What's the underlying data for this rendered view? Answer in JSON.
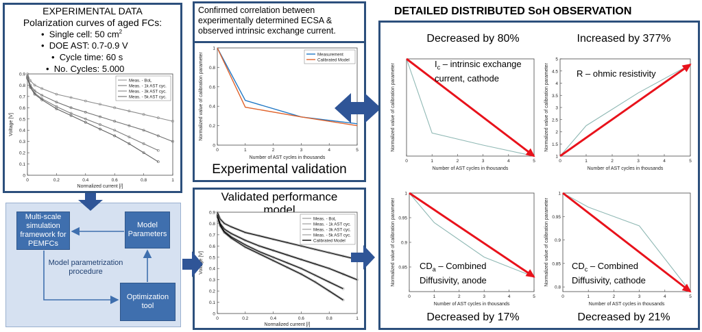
{
  "experimental": {
    "heading": "EXPERIMENTAL DATA",
    "subheading": "Polarization curves of aged FCs:",
    "bullets": [
      "Single cell: 50 cm",
      "DOE AST: 0.7-0.9 V",
      "Cycle time: 60 s",
      "No. Cycles: 5.000"
    ],
    "sup": "2",
    "xlabel": "Normalized current [/]",
    "ylabel": "Voltage [V]",
    "legend": [
      "Meas. - BoL",
      "Meas. - 1k AST cyc.",
      "Meas. - 3k AST cyc.",
      "Meas. - 5k AST cyc."
    ]
  },
  "correlation": {
    "text_lines": [
      "Confirmed correlation between",
      "experimentally determined ECSA &",
      "observed intrinsic exchange current."
    ],
    "xlabel": "Number of AST cycles in thousands",
    "ylabel": "Normalized value of calibration parameter",
    "legend": [
      "Measurement",
      "Calibrated Model"
    ],
    "caption": "Experimental validation"
  },
  "validated": {
    "title_lines": [
      "Validated performance",
      "model"
    ],
    "xlabel": "Normalized current [/]",
    "ylabel": "Voltage [V]",
    "legend": [
      "Meas. - BoL",
      "Meas. - 1k AST cyc.",
      "Meas. - 3k AST cyc.",
      "Meas. - 5k AST cyc.",
      "Calibrated Model"
    ]
  },
  "flow": {
    "framework": [
      "Multi-scale",
      "simulation",
      "framework for",
      "PEMFCs"
    ],
    "parameters": [
      "Model",
      "Parameters"
    ],
    "procedure": [
      "Model parametrization",
      "procedure"
    ],
    "optimization": [
      "Optimization",
      "tool"
    ]
  },
  "distributed": {
    "title": "DETAILED DISTRIBUTED SoH OBSERVATION",
    "xlabel": "Number of AST cycles in thousands",
    "ylabel": "Normalized value of calibration parameter",
    "panels": [
      {
        "headline": "Decreased by 80%",
        "label1": "I",
        "sub": "c",
        "label2": " – intrinsic exchange",
        "label3": "current, cathode"
      },
      {
        "headline": "Increased by 377%",
        "label1": "R – ohmic resistivity",
        "sub": "",
        "label2": "",
        "label3": ""
      },
      {
        "headline": "Decreased by 17%",
        "label1": "CD",
        "sub": "a",
        "label2": " – Combined",
        "label3": "Diffusivity, anode"
      },
      {
        "headline": "Decreased by 21%",
        "label1": "CD",
        "sub": "c",
        "label2": " – Combined",
        "label3": "Diffusivity, cathode"
      }
    ]
  },
  "colors": {
    "frame": "#2c4f7c",
    "arrow": "#2f5597",
    "trend": "#e8121b",
    "measurement": "#1f77c4",
    "model": "#e0622a",
    "thin": "#8fb8b4"
  },
  "chart_data": [
    {
      "type": "line",
      "title": "",
      "xlabel": "Normalized current [/]",
      "ylabel": "Voltage [V]",
      "xlim": [
        0,
        1
      ],
      "ylim": [
        0,
        0.9
      ],
      "xticks": [
        0,
        0.2,
        0.4,
        0.6,
        0.8,
        1
      ],
      "yticks": [
        0,
        0.1,
        0.2,
        0.3,
        0.4,
        0.5,
        0.6,
        0.7,
        0.8,
        0.9
      ],
      "x": [
        0,
        0.02,
        0.05,
        0.1,
        0.2,
        0.3,
        0.4,
        0.5,
        0.6,
        0.7,
        0.8,
        0.9,
        1.0
      ],
      "series": [
        {
          "name": "Meas. - BoL",
          "values": [
            0.9,
            0.84,
            0.8,
            0.77,
            0.72,
            0.69,
            0.66,
            0.63,
            0.6,
            0.57,
            0.54,
            0.51,
            0.48
          ]
        },
        {
          "name": "Meas. - 1k AST cyc.",
          "values": [
            0.88,
            0.8,
            0.75,
            0.71,
            0.65,
            0.6,
            0.56,
            0.52,
            0.48,
            0.44,
            0.4,
            0.35,
            0.3
          ]
        },
        {
          "name": "Meas. - 3k AST cyc.",
          "values": [
            0.87,
            0.79,
            0.73,
            0.68,
            0.61,
            0.55,
            0.5,
            0.45,
            0.4,
            0.34,
            0.28,
            0.22,
            null
          ]
        },
        {
          "name": "Meas. - 5k AST cyc.",
          "values": [
            0.86,
            0.78,
            0.72,
            0.67,
            0.59,
            0.53,
            0.47,
            0.41,
            0.35,
            0.28,
            0.2,
            0.12,
            null
          ]
        }
      ]
    },
    {
      "type": "line",
      "title": "",
      "xlabel": "Number of AST cycles in thousands",
      "ylabel": "Normalized value of calibration parameter",
      "xlim": [
        0,
        5
      ],
      "ylim": [
        0,
        1
      ],
      "xticks": [
        0,
        1,
        2,
        3,
        4,
        5
      ],
      "yticks": [
        0,
        0.2,
        0.4,
        0.6,
        0.8,
        1
      ],
      "x": [
        0,
        1,
        3,
        5
      ],
      "series": [
        {
          "name": "Measurement",
          "values": [
            1.0,
            0.46,
            0.29,
            0.22
          ]
        },
        {
          "name": "Calibrated Model",
          "values": [
            1.0,
            0.39,
            0.29,
            0.2
          ]
        }
      ]
    },
    {
      "type": "line",
      "title": "",
      "xlabel": "Normalized current [/]",
      "ylabel": "Voltage [V]",
      "xlim": [
        0,
        1
      ],
      "ylim": [
        0,
        0.9
      ],
      "xticks": [
        0,
        0.2,
        0.4,
        0.6,
        0.8,
        1
      ],
      "yticks": [
        0,
        0.1,
        0.2,
        0.3,
        0.4,
        0.5,
        0.6,
        0.7,
        0.8,
        0.9
      ],
      "x": [
        0,
        0.02,
        0.05,
        0.1,
        0.2,
        0.3,
        0.4,
        0.5,
        0.6,
        0.7,
        0.8,
        0.9,
        1.0
      ],
      "series": [
        {
          "name": "Meas. - BoL",
          "values": [
            0.9,
            0.84,
            0.8,
            0.77,
            0.72,
            0.69,
            0.66,
            0.63,
            0.6,
            0.57,
            0.54,
            0.51,
            0.48
          ]
        },
        {
          "name": "Meas. - 1k AST cyc.",
          "values": [
            0.88,
            0.8,
            0.75,
            0.71,
            0.65,
            0.6,
            0.56,
            0.52,
            0.48,
            0.44,
            0.4,
            0.35,
            0.3
          ]
        },
        {
          "name": "Meas. - 3k AST cyc.",
          "values": [
            0.87,
            0.79,
            0.73,
            0.68,
            0.61,
            0.55,
            0.5,
            0.45,
            0.4,
            0.34,
            0.28,
            0.22,
            null
          ]
        },
        {
          "name": "Meas. - 5k AST cyc.",
          "values": [
            0.86,
            0.78,
            0.72,
            0.67,
            0.59,
            0.53,
            0.47,
            0.41,
            0.35,
            0.28,
            0.2,
            0.12,
            null
          ]
        }
      ]
    },
    {
      "type": "line",
      "title": "Decreased by 80%",
      "xlabel": "Number of AST cycles in thousands",
      "ylabel": "Normalized value of calibration parameter",
      "xlim": [
        0,
        5
      ],
      "ylim": [
        0.2,
        1.0
      ],
      "xticks": [
        0,
        1,
        2,
        3,
        4,
        5
      ],
      "yticks": [],
      "x": [
        0,
        1,
        3,
        5
      ],
      "series": [
        {
          "name": "",
          "values": [
            1.0,
            0.39,
            0.29,
            0.2
          ]
        }
      ],
      "annotations": [
        {
          "type": "trend-arrow",
          "from": [
            0,
            1.0
          ],
          "to": [
            5,
            0.2
          ]
        }
      ]
    },
    {
      "type": "line",
      "title": "Increased by 377%",
      "xlabel": "Number of AST cycles in thousands",
      "ylabel": "Normalized value of calibration parameter",
      "xlim": [
        0,
        5
      ],
      "ylim": [
        1,
        5
      ],
      "xticks": [
        0,
        1,
        2,
        3,
        4,
        5
      ],
      "yticks": [
        1,
        1.5,
        2,
        2.5,
        3,
        3.5,
        4,
        4.5,
        5
      ],
      "x": [
        0,
        1,
        3,
        5
      ],
      "series": [
        {
          "name": "",
          "values": [
            1.0,
            2.25,
            3.6,
            4.77
          ]
        }
      ],
      "annotations": [
        {
          "type": "trend-arrow",
          "from": [
            0,
            1.0
          ],
          "to": [
            5,
            4.77
          ]
        }
      ]
    },
    {
      "type": "line",
      "title": "Decreased by 17%",
      "xlabel": "Number of AST cycles in thousands",
      "ylabel": "Normalized value of calibration parameter",
      "xlim": [
        0,
        5
      ],
      "ylim": [
        0.8,
        1.0
      ],
      "xticks": [
        0,
        1,
        2,
        3,
        4,
        5
      ],
      "yticks": [
        0.85,
        0.9,
        0.95,
        1
      ],
      "x": [
        0,
        1,
        3,
        5
      ],
      "series": [
        {
          "name": "",
          "values": [
            1.0,
            0.94,
            0.87,
            0.83
          ]
        }
      ],
      "annotations": [
        {
          "type": "trend-arrow",
          "from": [
            0,
            1.0
          ],
          "to": [
            5,
            0.83
          ]
        }
      ]
    },
    {
      "type": "line",
      "title": "Decreased by 21%",
      "xlabel": "Number of AST cycles in thousands",
      "ylabel": "Normalized value of calibration parameter",
      "xlim": [
        0,
        5
      ],
      "ylim": [
        0.79,
        1.0
      ],
      "xticks": [
        0,
        1,
        2,
        3,
        4,
        5
      ],
      "yticks": [
        0.8,
        0.85,
        0.9,
        0.95,
        1
      ],
      "x": [
        0,
        1,
        3,
        5
      ],
      "series": [
        {
          "name": "",
          "values": [
            1.0,
            0.97,
            0.93,
            0.79
          ]
        }
      ],
      "annotations": [
        {
          "type": "trend-arrow",
          "from": [
            0,
            1.0
          ],
          "to": [
            5,
            0.79
          ]
        }
      ]
    }
  ]
}
